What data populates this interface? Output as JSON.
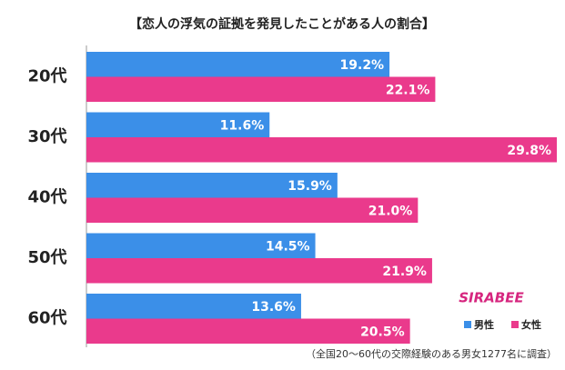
{
  "chart_data": {
    "type": "bar",
    "orientation": "horizontal",
    "title": "【恋人の浮気の証拠を発見したことがある人の割合】",
    "categories": [
      "20代",
      "30代",
      "40代",
      "50代",
      "60代"
    ],
    "series": [
      {
        "name": "男性",
        "color": "#3b8fe8",
        "values": [
          19.2,
          11.6,
          15.9,
          14.5,
          13.6
        ],
        "value_labels": [
          "19.2%",
          "11.6%",
          "15.9%",
          "14.5%",
          "13.6%"
        ]
      },
      {
        "name": "女性",
        "color": "#ea3a8c",
        "values": [
          22.1,
          29.8,
          21.0,
          21.9,
          20.5
        ],
        "value_labels": [
          "22.1%",
          "29.8%",
          "21.0%",
          "21.9%",
          "20.5%"
        ]
      }
    ],
    "legend": "lower right",
    "logo": "SIRABEE",
    "footnote": "（全国20～60代の交際経験のある男女1277名に調査）"
  }
}
